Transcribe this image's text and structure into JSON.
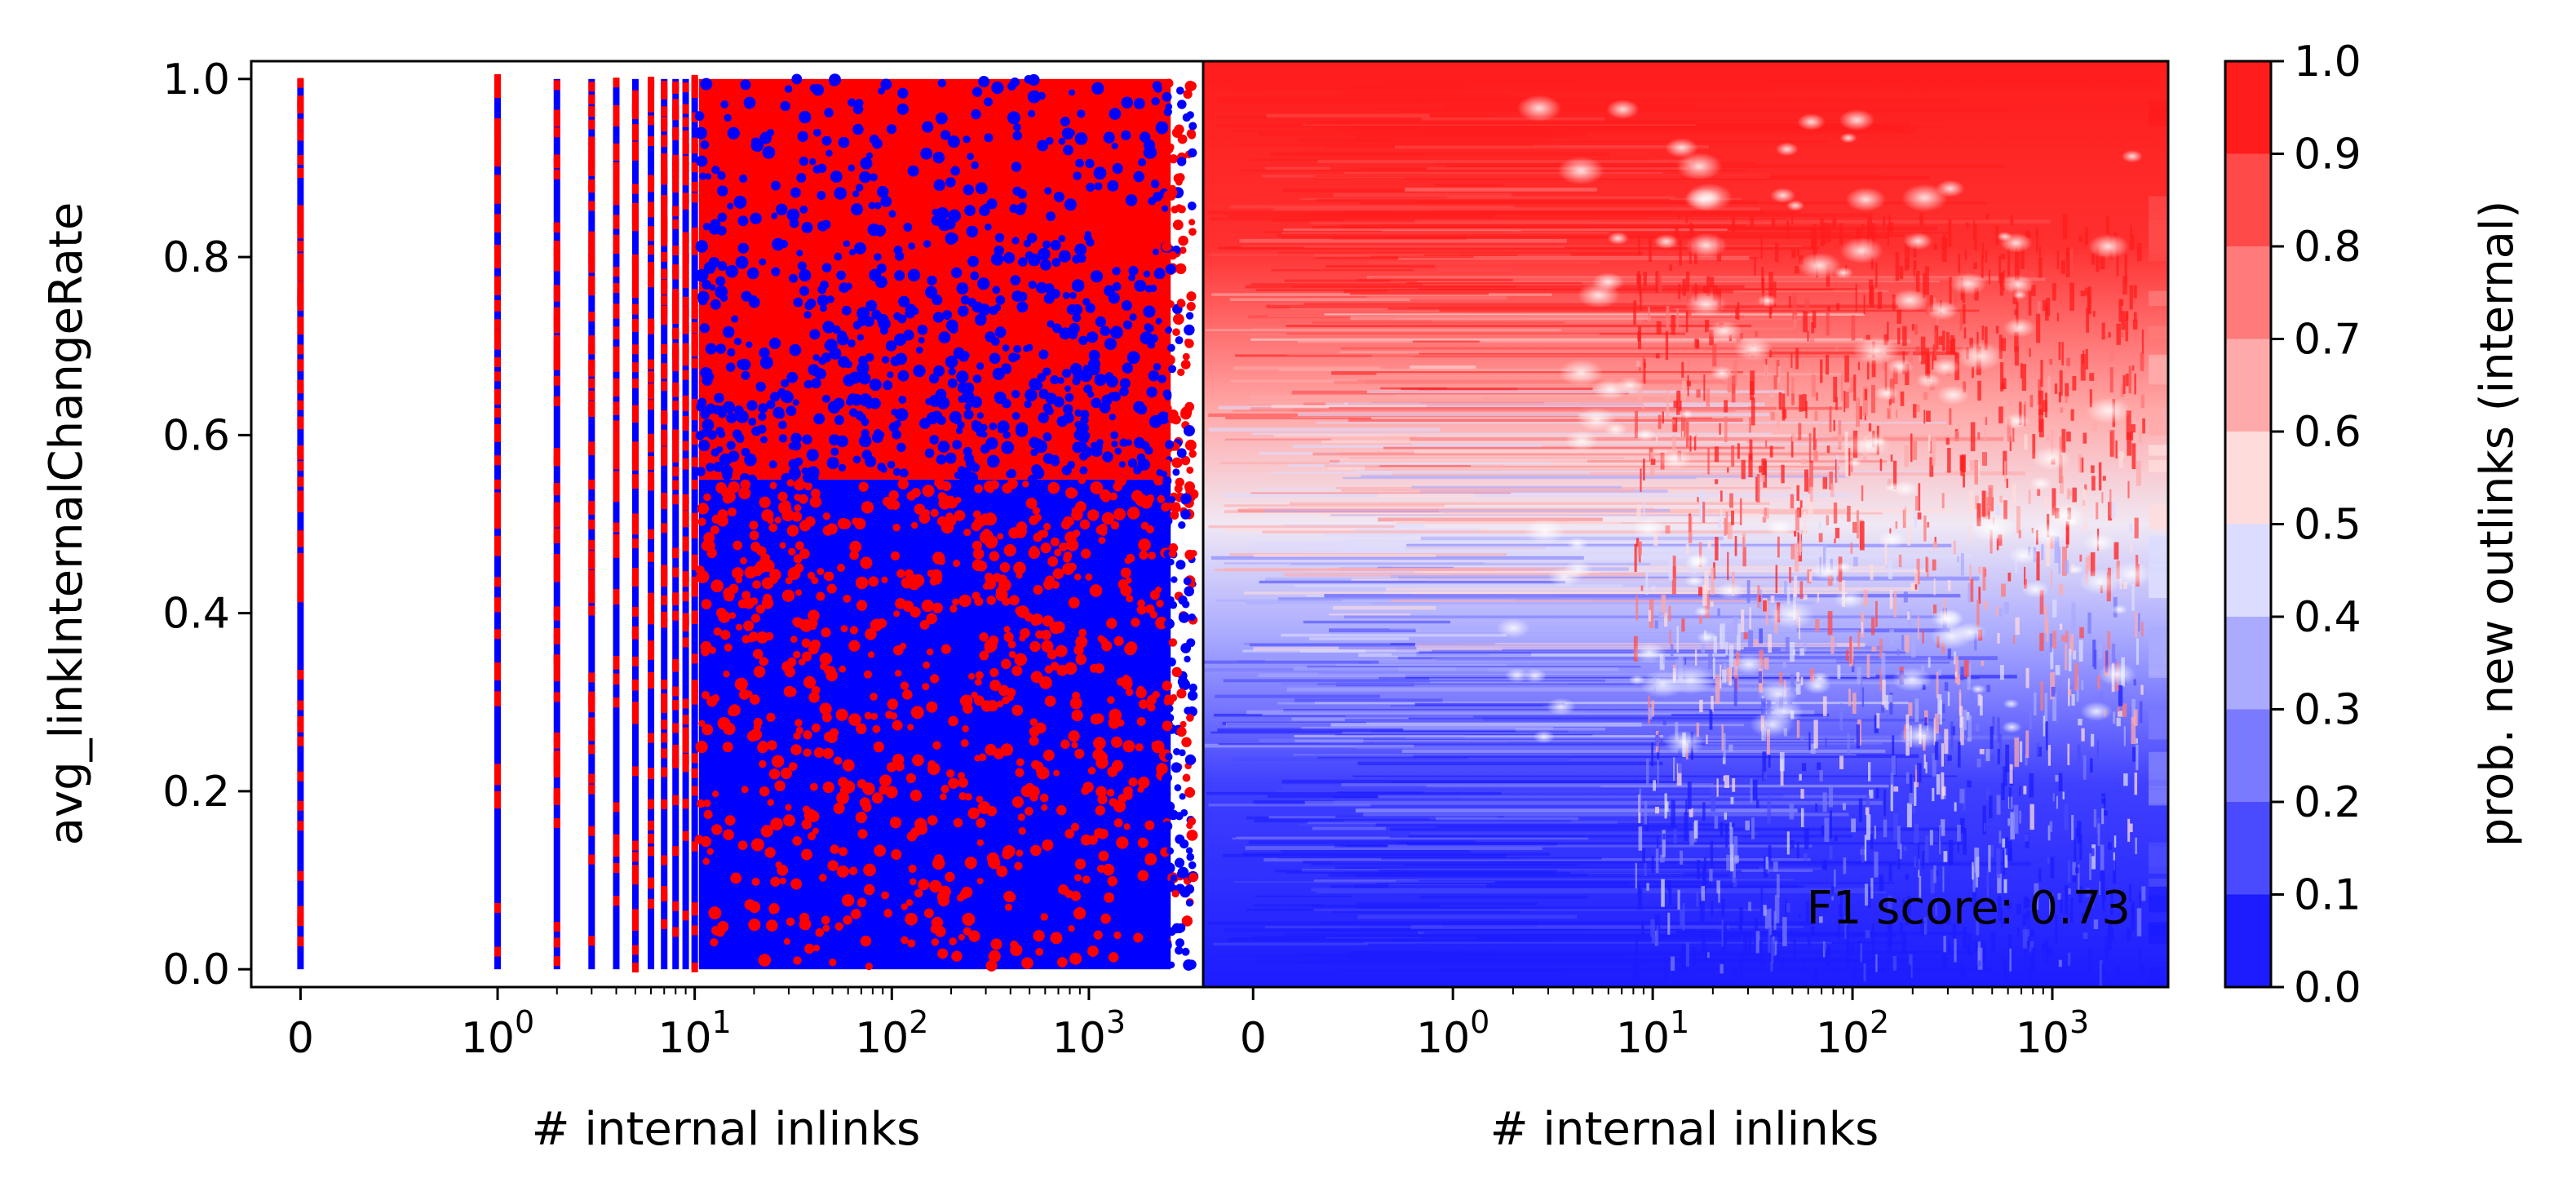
{
  "chart_data": [
    {
      "type": "scatter",
      "xlabel": "# internal inlinks",
      "ylabel": "avg_linkInternalChangeRate",
      "x_scale": "symlog",
      "x_tick_labels": [
        {
          "value": 0,
          "base": "0",
          "exp": ""
        },
        {
          "value": 1,
          "base": "10",
          "exp": "0"
        },
        {
          "value": 10,
          "base": "10",
          "exp": "1"
        },
        {
          "value": 100,
          "base": "10",
          "exp": "2"
        },
        {
          "value": 1000,
          "base": "10",
          "exp": "3"
        }
      ],
      "xlim": [
        -0.25,
        3800
      ],
      "ylim": [
        -0.02,
        1.02
      ],
      "y_ticks": [
        "0.0",
        "0.2",
        "0.4",
        "0.6",
        "0.8",
        "1.0"
      ],
      "y_tick_values": [
        0,
        0.2,
        0.4,
        0.6,
        0.8,
        1.0
      ],
      "point_columns_x": [
        0,
        1,
        2,
        3,
        4,
        5,
        6,
        7,
        8,
        9,
        10
      ],
      "series_colors": {
        "positive": "#ff0000",
        "negative": "#0000ff"
      },
      "description_of_density": "points of both classes cover the whole y-range; blue dominates y<0.4, red dominates y>0.55"
    },
    {
      "type": "heatmap",
      "xlabel": "# internal inlinks",
      "x_scale": "symlog",
      "x_tick_labels": [
        {
          "value": 0,
          "base": "0",
          "exp": ""
        },
        {
          "value": 1,
          "base": "10",
          "exp": "0"
        },
        {
          "value": 10,
          "base": "10",
          "exp": "1"
        },
        {
          "value": 100,
          "base": "10",
          "exp": "2"
        },
        {
          "value": 1000,
          "base": "10",
          "exp": "3"
        }
      ],
      "xlim": [
        -0.25,
        3800
      ],
      "ylim": [
        -0.02,
        1.02
      ],
      "annotation": "F1 score: 0.73",
      "colorbar": {
        "label": "prob. new outlinks (internal)",
        "ticks": [
          "0.0",
          "0.1",
          "0.2",
          "0.3",
          "0.4",
          "0.5",
          "0.6",
          "0.7",
          "0.8",
          "0.9",
          "1.0"
        ],
        "levels": [
          {
            "from": 0.0,
            "to": 0.1,
            "color": "#1c1cff"
          },
          {
            "from": 0.1,
            "to": 0.2,
            "color": "#4a4aff"
          },
          {
            "from": 0.2,
            "to": 0.3,
            "color": "#7a7aff"
          },
          {
            "from": 0.3,
            "to": 0.4,
            "color": "#aaaaff"
          },
          {
            "from": 0.4,
            "to": 0.5,
            "color": "#dcdcff"
          },
          {
            "from": 0.5,
            "to": 0.6,
            "color": "#ffdcdc"
          },
          {
            "from": 0.6,
            "to": 0.7,
            "color": "#ffaaaa"
          },
          {
            "from": 0.7,
            "to": 0.8,
            "color": "#ff7a7a"
          },
          {
            "from": 0.8,
            "to": 0.9,
            "color": "#ff4a4a"
          },
          {
            "from": 0.9,
            "to": 1.0,
            "color": "#ff1c1c"
          }
        ]
      }
    }
  ]
}
